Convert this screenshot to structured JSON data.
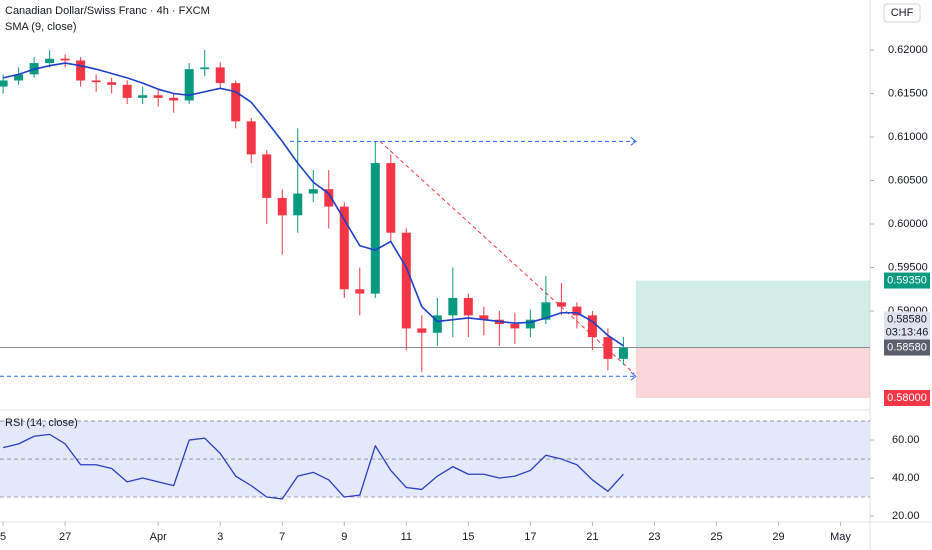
{
  "chart_data": {
    "type": "candlestick",
    "title": "Canadian Dollar/Swiss Franc · 4h · FXCM",
    "currency": "CHF",
    "xlim": [
      -0.2,
      55.9
    ],
    "xticks": [
      {
        "value": 0,
        "label": "5"
      },
      {
        "value": 4,
        "label": "27"
      },
      {
        "value": 10,
        "label": "Apr"
      },
      {
        "value": 14,
        "label": "3"
      },
      {
        "value": 18,
        "label": "7"
      },
      {
        "value": 22,
        "label": "9"
      },
      {
        "value": 26,
        "label": "11"
      },
      {
        "value": 30,
        "label": "15"
      },
      {
        "value": 34,
        "label": "17"
      },
      {
        "value": 38,
        "label": "21"
      },
      {
        "value": 42,
        "label": "23"
      },
      {
        "value": 46,
        "label": "25"
      },
      {
        "value": 50,
        "label": "29"
      },
      {
        "value": 54,
        "label": "May"
      }
    ],
    "ylim": [
      0.57862,
      0.62575
    ],
    "yticks": [
      {
        "value": 0.62,
        "label": "0.62000"
      },
      {
        "value": 0.615,
        "label": "0.61500"
      },
      {
        "value": 0.61,
        "label": "0.61000"
      },
      {
        "value": 0.605,
        "label": "0.60500"
      },
      {
        "value": 0.6,
        "label": "0.60000"
      },
      {
        "value": 0.595,
        "label": "0.59500"
      },
      {
        "value": 0.59,
        "label": "0.59000"
      }
    ],
    "up_color": "#089981",
    "down_color": "#f23645",
    "open": [
      0.6158,
      0.6165,
      0.6172,
      0.6185,
      0.619,
      0.6188,
      0.6165,
      0.6163,
      0.616,
      0.6145,
      0.6148,
      0.6145,
      0.6142,
      0.6178,
      0.618,
      0.6162,
      0.6118,
      0.608,
      0.603,
      0.601,
      0.6035,
      0.604,
      0.602,
      0.5925,
      0.592,
      0.607,
      0.599,
      0.588,
      0.5875,
      0.5895,
      0.5915,
      0.5895,
      0.589,
      0.5885,
      0.588,
      0.589,
      0.591,
      0.5905,
      0.5895,
      0.587,
      0.5845
    ],
    "high": [
      0.6172,
      0.618,
      0.6192,
      0.62,
      0.6195,
      0.6192,
      0.6172,
      0.6168,
      0.6165,
      0.6158,
      0.6155,
      0.615,
      0.6185,
      0.62,
      0.6186,
      0.6165,
      0.6122,
      0.6085,
      0.604,
      0.611,
      0.6062,
      0.6062,
      0.6025,
      0.595,
      0.6095,
      0.608,
      0.5995,
      0.5895,
      0.5915,
      0.595,
      0.592,
      0.5905,
      0.59,
      0.5898,
      0.5902,
      0.594,
      0.5932,
      0.591,
      0.59,
      0.588,
      0.587
    ],
    "low": [
      0.615,
      0.616,
      0.6168,
      0.618,
      0.618,
      0.6158,
      0.6152,
      0.615,
      0.6138,
      0.6138,
      0.6135,
      0.6128,
      0.6138,
      0.617,
      0.6155,
      0.611,
      0.607,
      0.6,
      0.5965,
      0.599,
      0.6025,
      0.5995,
      0.5915,
      0.5895,
      0.5915,
      0.598,
      0.5855,
      0.583,
      0.586,
      0.587,
      0.587,
      0.5872,
      0.586,
      0.5862,
      0.587,
      0.5885,
      0.5895,
      0.588,
      0.5855,
      0.5832,
      0.5838
    ],
    "close": [
      0.6165,
      0.6172,
      0.6185,
      0.619,
      0.6188,
      0.6165,
      0.6163,
      0.616,
      0.6145,
      0.6148,
      0.6145,
      0.6142,
      0.6178,
      0.618,
      0.6162,
      0.6118,
      0.608,
      0.603,
      0.601,
      0.6035,
      0.604,
      0.602,
      0.5925,
      0.592,
      0.607,
      0.599,
      0.588,
      0.5875,
      0.5895,
      0.5915,
      0.5895,
      0.589,
      0.5885,
      0.588,
      0.589,
      0.591,
      0.5905,
      0.5895,
      0.587,
      0.5845,
      0.5858
    ],
    "sma": {
      "name": "SMA (9, close)",
      "color": "#1e40c8",
      "values": [
        0.6168,
        0.6172,
        0.6178,
        0.6182,
        0.6185,
        0.6182,
        0.6178,
        0.6173,
        0.6168,
        0.6162,
        0.6155,
        0.615,
        0.6148,
        0.6152,
        0.6156,
        0.6152,
        0.614,
        0.6118,
        0.6095,
        0.607,
        0.6048,
        0.6035,
        0.6005,
        0.5975,
        0.597,
        0.598,
        0.595,
        0.5905,
        0.5888,
        0.589,
        0.5892,
        0.589,
        0.5888,
        0.5886,
        0.5887,
        0.5892,
        0.5898,
        0.5898,
        0.5888,
        0.5872,
        0.586
      ]
    },
    "levels": [
      {
        "from": 18.5,
        "to": 40.8,
        "value": 0.6095,
        "color": "#2962ff"
      },
      {
        "from": -0.2,
        "to": 40.8,
        "value": 0.5825,
        "color": "#2962ff"
      }
    ],
    "trend_line": {
      "from": [
        24.3,
        0.6095
      ],
      "to": [
        40.7,
        0.5828
      ],
      "color": "#f23645"
    },
    "last_price": 0.5858,
    "position": {
      "from": 40.8,
      "target": 0.5935,
      "entry": 0.5858,
      "stop": 0.58
    },
    "price_labels": [
      {
        "value": 0.5935,
        "label": "0.59350",
        "bg": "#089981",
        "fg": "#ffffff"
      },
      {
        "value": 0.5858,
        "label": "0.58580",
        "bg": "#e0e3eb",
        "fg": "#131722",
        "countdown": "03:13:46"
      },
      {
        "value": 0.5858,
        "label": "0.58580",
        "bg": "#5d606b",
        "fg": "#ffffff"
      },
      {
        "value": 0.58,
        "label": "0.58000",
        "bg": "#f23645",
        "fg": "#ffffff"
      }
    ],
    "rsi": {
      "name": "RSI (14, close)",
      "color": "#2a3fbf",
      "ylim": [
        17.9,
        73.2
      ],
      "yticks": [
        {
          "value": 60,
          "label": "60.00"
        },
        {
          "value": 40,
          "label": "40.00"
        },
        {
          "value": 20,
          "label": "20.00"
        }
      ],
      "bands": [
        70,
        50,
        30
      ],
      "values": [
        56,
        58,
        62,
        63,
        58,
        47,
        47,
        45,
        38,
        40,
        38,
        36,
        60,
        61,
        53,
        41,
        36,
        30,
        29,
        41,
        43,
        39,
        30,
        31,
        57,
        44,
        35,
        34,
        41,
        46,
        42,
        42,
        40,
        41,
        44,
        52,
        50,
        47,
        39,
        33,
        42
      ]
    }
  }
}
